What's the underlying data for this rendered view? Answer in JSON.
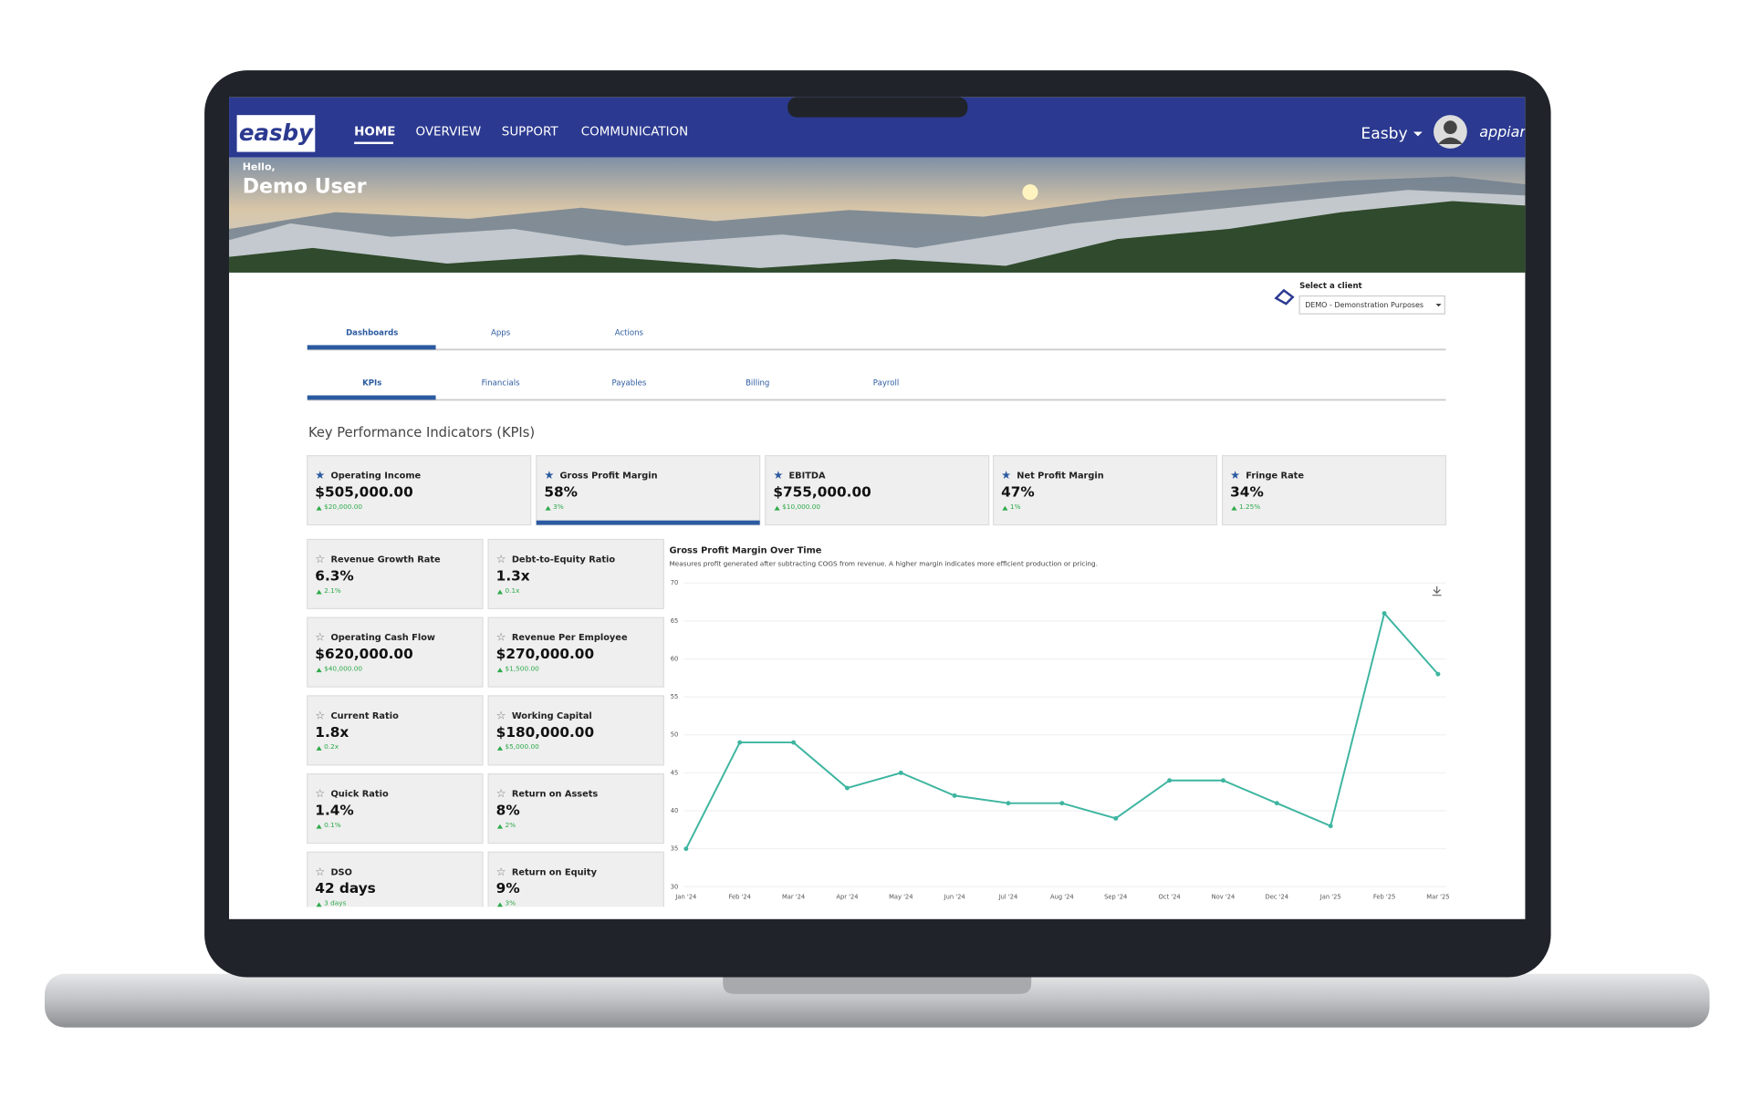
{
  "header": {
    "logo": "easby",
    "nav": [
      "HOME",
      "OVERVIEW",
      "SUPPORT",
      "COMMUNICATION"
    ],
    "user": "Easby",
    "brand": "appian"
  },
  "banner": {
    "greeting": "Hello,",
    "name": "Demo User"
  },
  "client": {
    "label": "Select a client",
    "selected": "DEMO - Demonstration Purposes"
  },
  "tabs": [
    "Dashboards",
    "Apps",
    "Actions"
  ],
  "subtabs": [
    "KPIs",
    "Financials",
    "Payables",
    "Billing",
    "Payroll"
  ],
  "section_title": "Key Performance Indicators (KPIs)",
  "top_kpis": [
    {
      "title": "Operating Income",
      "value": "$505,000.00",
      "change": "$20,000.00"
    },
    {
      "title": "Gross Profit Margin",
      "value": "58%",
      "change": "3%"
    },
    {
      "title": "EBITDA",
      "value": "$755,000.00",
      "change": "$10,000.00"
    },
    {
      "title": "Net Profit Margin",
      "value": "47%",
      "change": "1%"
    },
    {
      "title": "Fringe Rate",
      "value": "34%",
      "change": "1.25%"
    }
  ],
  "kpis": [
    {
      "title": "Revenue Growth Rate",
      "value": "6.3%",
      "change": "2.1%"
    },
    {
      "title": "Debt-to-Equity Ratio",
      "value": "1.3x",
      "change": "0.1x"
    },
    {
      "title": "Operating Cash Flow",
      "value": "$620,000.00",
      "change": "$40,000.00"
    },
    {
      "title": "Revenue Per Employee",
      "value": "$270,000.00",
      "change": "$1,500.00"
    },
    {
      "title": "Current Ratio",
      "value": "1.8x",
      "change": "0.2x"
    },
    {
      "title": "Working Capital",
      "value": "$180,000.00",
      "change": "$5,000.00"
    },
    {
      "title": "Quick Ratio",
      "value": "1.4%",
      "change": "0.1%"
    },
    {
      "title": "Return on Assets",
      "value": "8%",
      "change": "2%"
    },
    {
      "title": "DSO",
      "value": "42 days",
      "change": "3 days"
    },
    {
      "title": "Return on Equity",
      "value": "9%",
      "change": "3%"
    }
  ],
  "chart_data": {
    "type": "line",
    "title": "Gross Profit Margin Over Time",
    "subtitle": "Measures profit generated after subtracting COGS from revenue. A higher margin indicates more efficient production or pricing.",
    "categories": [
      "Jan '24",
      "Feb '24",
      "Mar '24",
      "Apr '24",
      "May '24",
      "Jun '24",
      "Jul '24",
      "Aug '24",
      "Sep '24",
      "Oct '24",
      "Nov '24",
      "Dec '24",
      "Jan '25",
      "Feb '25",
      "Mar '25"
    ],
    "values": [
      35,
      49,
      49,
      43,
      45,
      42,
      41,
      41,
      39,
      44,
      44,
      41,
      38,
      66,
      58
    ],
    "color": "#3db5a0",
    "ylim": [
      30,
      70
    ],
    "yticks": [
      30,
      35,
      40,
      45,
      50,
      55,
      60,
      65,
      70
    ],
    "grid": true
  }
}
